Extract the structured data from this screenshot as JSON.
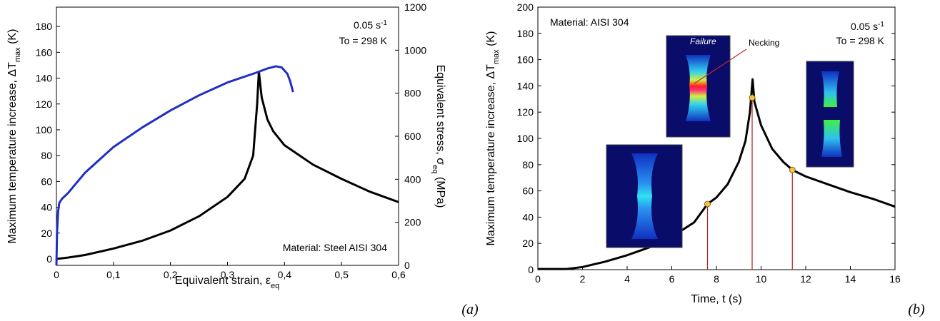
{
  "chart_data": [
    {
      "type": "line",
      "xlim": [
        0,
        0.6
      ],
      "xticks": [
        0,
        {
          "value": 0.1,
          "label": "0,1"
        },
        {
          "value": 0.2,
          "label": "0,2"
        },
        {
          "value": 0.3,
          "label": "0,3"
        },
        {
          "value": 0.4,
          "label": "0,4"
        },
        {
          "value": 0.5,
          "label": "0,5"
        },
        {
          "value": 0.6,
          "label": "0,6"
        }
      ],
      "ylim": [
        -5,
        195
      ],
      "yticks": [
        0,
        20,
        40,
        60,
        80,
        100,
        120,
        140,
        160,
        180
      ],
      "y2lim": [
        0,
        1200
      ],
      "y2ticks": [
        0,
        200,
        400,
        600,
        800,
        1000,
        1200
      ],
      "x_label": {
        "text": "Equivalent strain, ε",
        "sub": "eq"
      },
      "y_label": {
        "text": "Maximum temperature increase, ΔT",
        "sub": "max",
        "tail": " (K)"
      },
      "y2_label": {
        "text": "Equivalent stress, σ",
        "sub": "eq",
        "tail": " (MPa)"
      },
      "annotations": {
        "rate": "0.05 s",
        "rate_sup": "-1",
        "initial_temp": "To = 298 K",
        "material": "Material: Steel AISI 304"
      },
      "panel_label": "(a)",
      "series": [
        {
          "color": "#000000",
          "mode": "lines",
          "x": [
            0,
            0.02,
            0.05,
            0.1,
            0.15,
            0.2,
            0.25,
            0.3,
            0.33,
            0.345,
            0.352,
            0.355,
            0.36,
            0.37,
            0.38,
            0.4,
            0.45,
            0.5,
            0.55,
            0.6
          ],
          "values": [
            0,
            1,
            3,
            8,
            14,
            22,
            33,
            48,
            62,
            80,
            120,
            145,
            125,
            108,
            99,
            88,
            73,
            62,
            52,
            44
          ]
        },
        {
          "color": "#1f2fc4",
          "mode": "lines",
          "axis": "y2",
          "x": [
            0,
            0.001,
            0.003,
            0.005,
            0.01,
            0.02,
            0.05,
            0.1,
            0.15,
            0.2,
            0.25,
            0.3,
            0.35,
            0.37,
            0.385,
            0.395,
            0.405,
            0.41,
            0.415
          ],
          "values": [
            0,
            150,
            250,
            290,
            310,
            335,
            430,
            550,
            640,
            720,
            790,
            850,
            895,
            915,
            925,
            920,
            890,
            855,
            805
          ]
        }
      ]
    },
    {
      "type": "line",
      "xlim": [
        0,
        16
      ],
      "xticks": [
        0,
        2,
        4,
        6,
        8,
        10,
        12,
        14,
        16
      ],
      "ylim": [
        0,
        200
      ],
      "yticks": [
        0,
        20,
        40,
        60,
        80,
        100,
        120,
        140,
        160,
        180,
        200
      ],
      "x_label": {
        "text": "Time, t (s)"
      },
      "y_label": {
        "text": "Maximum temperature increase, ΔT",
        "sub": "max",
        "tail": " (K)"
      },
      "annotations": {
        "rate": "0.05 s",
        "rate_sup": "-1",
        "initial_temp": "To = 298 K",
        "material": "Material: AISI 304",
        "failure": "Failure",
        "necking": "Necking"
      },
      "panel_label": "(b)",
      "series": [
        {
          "color": "#000000",
          "mode": "lines",
          "x": [
            0,
            1.3,
            2,
            3,
            4,
            5,
            6,
            7,
            7.6,
            8,
            8.5,
            9,
            9.3,
            9.5,
            9.62,
            9.7,
            10,
            10.5,
            11,
            11.4,
            12,
            13,
            14,
            15,
            16
          ],
          "values": [
            0.5,
            0.5,
            2,
            6,
            11,
            17,
            25,
            36,
            50,
            55,
            65,
            82,
            98,
            120,
            145,
            128,
            110,
            92,
            82,
            76,
            71,
            65,
            59,
            54,
            48
          ]
        },
        {
          "color": "#f5c542",
          "mode": "markers",
          "x": [
            7.6,
            9.6,
            11.4
          ],
          "values": [
            50,
            131,
            76
          ]
        }
      ]
    }
  ]
}
